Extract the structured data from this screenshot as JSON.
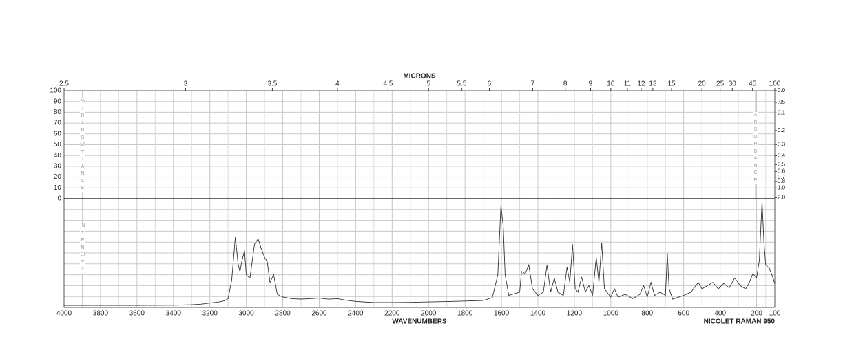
{
  "chart_data": {
    "type": "line",
    "title": "MICRONS",
    "x_label": "WAVENUMBERS",
    "instrument": "NICOLET RAMAN 950",
    "y_label": "%TRANSMITTANCE",
    "y2_label": "ABSORBANCE",
    "y3_label": "INTENSITY",
    "xlim": [
      4000,
      100
    ],
    "xticks": [
      4000,
      3800,
      3600,
      3400,
      3200,
      3000,
      2800,
      2600,
      2400,
      2200,
      2000,
      1800,
      1600,
      1400,
      1200,
      1000,
      800,
      600,
      400,
      200,
      100
    ],
    "x2scale": "reciprocal",
    "x2ticks": [
      2.5,
      3,
      3.5,
      4,
      4.5,
      5,
      5.5,
      6,
      7,
      8,
      9,
      10,
      11,
      12,
      13,
      15,
      20,
      25,
      30,
      45,
      100
    ],
    "ylim": [
      0,
      100
    ],
    "yticks": [
      0,
      10,
      20,
      30,
      40,
      50,
      60,
      70,
      80,
      90,
      100
    ],
    "y2scale": "absorbance",
    "y2ticks": [
      {
        "value": 0,
        "label": "0.0"
      },
      {
        "value": 0.05,
        "label": ".05"
      },
      0.1,
      0.2,
      0.3,
      0.4,
      0.5,
      0.6,
      0.7,
      0.8,
      {
        "value": 1,
        "label": "1.0"
      },
      {
        "value": 2,
        "label": "2.0"
      }
    ],
    "y3lim": [
      0,
      100
    ],
    "grid": true,
    "x": [
      4000,
      3800,
      3600,
      3400,
      3300,
      3250,
      3200,
      3150,
      3120,
      3100,
      3080,
      3060,
      3045,
      3035,
      3025,
      3010,
      3000,
      2980,
      2955,
      2935,
      2920,
      2900,
      2885,
      2870,
      2850,
      2830,
      2800,
      2750,
      2700,
      2650,
      2600,
      2550,
      2500,
      2450,
      2400,
      2300,
      2200,
      2100,
      2000,
      1900,
      1800,
      1700,
      1650,
      1620,
      1603,
      1590,
      1580,
      1560,
      1500,
      1490,
      1470,
      1450,
      1430,
      1400,
      1370,
      1350,
      1330,
      1310,
      1290,
      1260,
      1240,
      1225,
      1210,
      1195,
      1180,
      1160,
      1140,
      1120,
      1100,
      1080,
      1065,
      1050,
      1035,
      1000,
      980,
      960,
      920,
      880,
      840,
      820,
      800,
      780,
      760,
      730,
      700,
      690,
      680,
      660,
      600,
      560,
      520,
      500,
      470,
      440,
      410,
      380,
      350,
      320,
      290,
      260,
      240,
      220,
      200,
      185,
      170,
      160,
      150,
      130,
      110,
      100
    ],
    "series": [
      {
        "name": "INTENSITY",
        "color": "#333333",
        "axis": "y3",
        "values": [
          1.9,
          1.9,
          1.9,
          2,
          2.5,
          3,
          4,
          5,
          6,
          8,
          25,
          64.6,
          40,
          33,
          42,
          52,
          30,
          27,
          58,
          63,
          55,
          46,
          42,
          23,
          30,
          12,
          9.5,
          8,
          7.6,
          8,
          8.5,
          7.5,
          8,
          6.5,
          5.5,
          4.4,
          4.4,
          4.6,
          5,
          5.3,
          5.8,
          6.3,
          9,
          30,
          94,
          74,
          30,
          11,
          14,
          33,
          31,
          39,
          17,
          11,
          14,
          39,
          14,
          27,
          14,
          11,
          37,
          23,
          58,
          17,
          14,
          28,
          14,
          20,
          11,
          46,
          23,
          59.5,
          17,
          9.5,
          17,
          9.5,
          12,
          8,
          12,
          20,
          9.5,
          23,
          11,
          14,
          11,
          50,
          17,
          7.6,
          11,
          14,
          23,
          17,
          20,
          23,
          17,
          22,
          18,
          27,
          20,
          17,
          23,
          31,
          27,
          43,
          97.5,
          61,
          39,
          36,
          27,
          21.5
        ]
      }
    ]
  }
}
